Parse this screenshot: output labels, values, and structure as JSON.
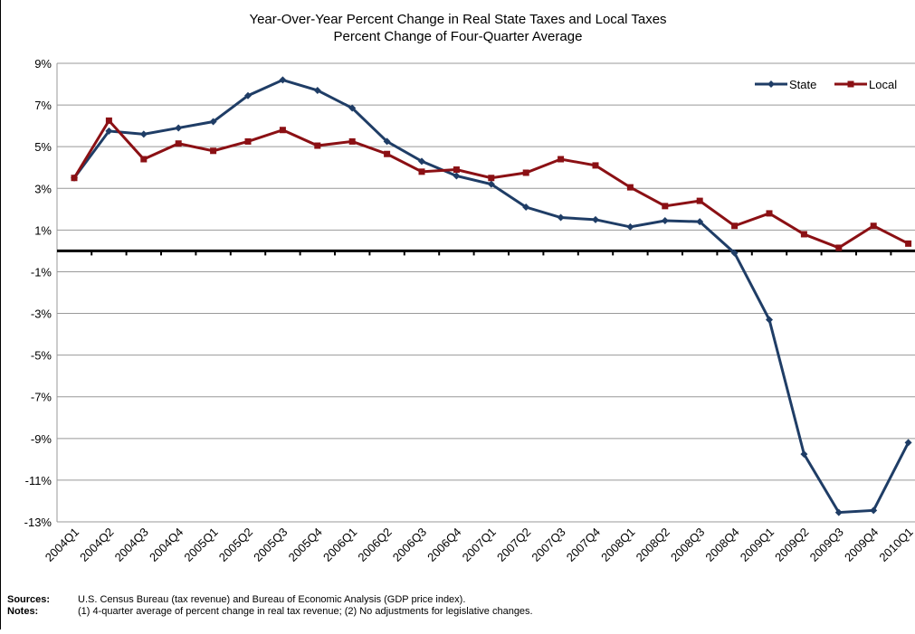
{
  "chart_data": {
    "type": "line",
    "title": "Year-Over-Year Percent Change in Real State Taxes and Local Taxes",
    "subtitle": "Percent Change of Four-Quarter Average",
    "categories": [
      "2004Q1",
      "2004Q2",
      "2004Q3",
      "2004Q4",
      "2005Q1",
      "2005Q2",
      "2005Q3",
      "2005Q4",
      "2006Q1",
      "2006Q2",
      "2006Q3",
      "2006Q4",
      "2007Q1",
      "2007Q2",
      "2007Q3",
      "2007Q4",
      "2008Q1",
      "2008Q2",
      "2008Q3",
      "2008Q4",
      "2009Q1",
      "2009Q2",
      "2009Q3",
      "2009Q4",
      "2010Q1"
    ],
    "series": [
      {
        "name": "State",
        "color": "#1f3d66",
        "values": [
          3.5,
          5.75,
          5.6,
          5.9,
          6.2,
          7.45,
          8.2,
          7.7,
          6.85,
          5.25,
          4.3,
          3.6,
          3.2,
          2.1,
          1.6,
          1.5,
          1.15,
          1.45,
          1.4,
          -0.1,
          -3.3,
          -9.75,
          -12.55,
          -12.45,
          -9.2
        ]
      },
      {
        "name": "Local",
        "color": "#8b1014",
        "values": [
          3.5,
          6.25,
          4.4,
          5.15,
          4.8,
          5.25,
          5.8,
          5.05,
          5.25,
          4.65,
          3.8,
          3.9,
          3.5,
          3.75,
          4.4,
          4.1,
          3.05,
          2.15,
          2.4,
          1.2,
          1.8,
          0.8,
          0.15,
          1.2,
          0.35
        ]
      }
    ],
    "ylim": [
      -13,
      9
    ],
    "yticks": [
      {
        "value": 9,
        "label": "9%"
      },
      {
        "value": 7,
        "label": "7%"
      },
      {
        "value": 5,
        "label": "5%"
      },
      {
        "value": 3,
        "label": "3%"
      },
      {
        "value": 1,
        "label": "1%"
      },
      {
        "value": -1,
        "label": "-1%"
      },
      {
        "value": -3,
        "label": "-3%"
      },
      {
        "value": -5,
        "label": "-5%"
      },
      {
        "value": -7,
        "label": "-7%"
      },
      {
        "value": -9,
        "label": "-9%"
      },
      {
        "value": -11,
        "label": "-11%"
      },
      {
        "value": -13,
        "label": "-13%"
      }
    ],
    "grid": true,
    "legend": "top-right",
    "notes": [
      {
        "label": "Sources:",
        "text": "U.S. Census Bureau (tax revenue) and Bureau of Economic Analysis (GDP price index)."
      },
      {
        "label": "Notes:",
        "text": "(1) 4-quarter average of percent change in real tax revenue; (2) No adjustments for legislative changes."
      }
    ]
  }
}
